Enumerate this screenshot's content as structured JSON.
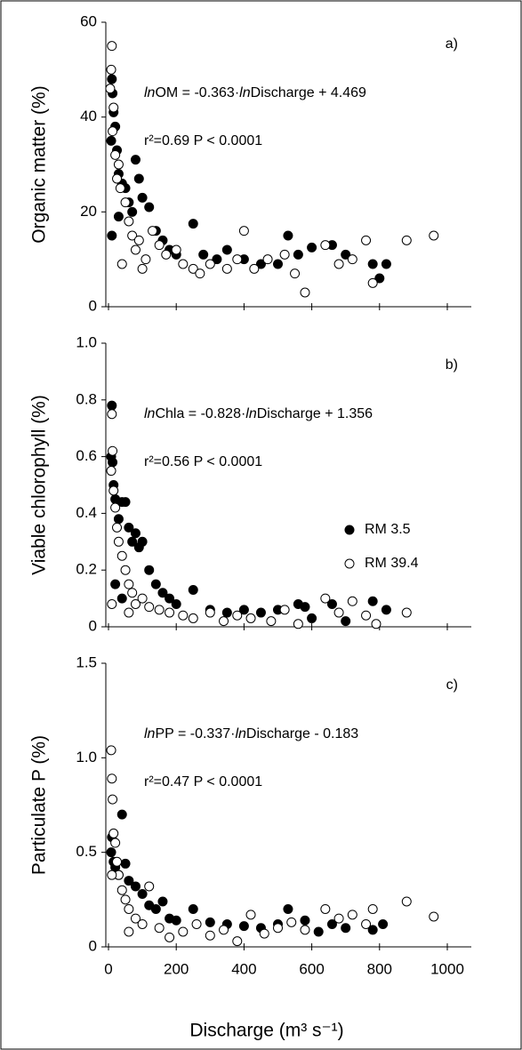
{
  "chart_data": [
    {
      "type": "scatter",
      "panel_label": "a)",
      "ylabel": "Organic matter (%)",
      "equation": "lnOM = -0.363·lnDischarge + 4.469",
      "stats": "r²=0.69 P < 0.0001",
      "xlim": [
        0,
        1000
      ],
      "xticks": [
        0,
        200,
        400,
        600,
        800,
        1000
      ],
      "ylim": [
        0,
        60
      ],
      "yticks": [
        0,
        20,
        40,
        60
      ],
      "series": [
        {
          "color": "#000000",
          "x": [
            10,
            12,
            15,
            8,
            20,
            25,
            30,
            40,
            50,
            60,
            70,
            80,
            90,
            100,
            120,
            140,
            160,
            180,
            200,
            250,
            280,
            320,
            350,
            400,
            450,
            500,
            530,
            560,
            600,
            660,
            700,
            780,
            800,
            820,
            10,
            30
          ],
          "values": [
            48,
            45,
            41,
            35,
            38,
            33,
            28,
            26,
            25,
            22,
            20,
            31,
            27,
            23,
            21,
            16,
            14,
            12,
            11,
            17.5,
            11,
            10,
            12,
            10,
            9,
            9,
            15,
            11,
            12.5,
            13,
            11,
            9,
            6,
            9,
            15,
            19
          ]
        },
        {
          "color": "#ffffff",
          "x": [
            10,
            8,
            5,
            15,
            12,
            20,
            25,
            30,
            35,
            50,
            60,
            70,
            80,
            90,
            110,
            130,
            150,
            170,
            200,
            220,
            250,
            270,
            300,
            350,
            380,
            400,
            430,
            470,
            520,
            550,
            580,
            640,
            680,
            720,
            760,
            780,
            880,
            960,
            40,
            100
          ],
          "values": [
            55,
            50,
            46,
            42,
            37,
            32,
            27,
            30,
            25,
            22,
            18,
            15,
            12,
            14,
            10,
            16,
            13,
            11,
            12,
            9,
            8,
            7,
            9,
            8,
            10,
            16,
            8,
            10,
            11,
            7,
            3,
            13,
            9,
            10,
            14,
            5,
            14,
            15,
            9,
            8
          ]
        }
      ]
    },
    {
      "type": "scatter",
      "panel_label": "b)",
      "ylabel": "Viable chlorophyll (%)",
      "equation": "lnChla = -0.828·lnDischarge + 1.356",
      "stats": "r²=0.56 P < 0.0001",
      "xlim": [
        0,
        1000
      ],
      "xticks": [
        0,
        200,
        400,
        600,
        800,
        1000
      ],
      "ylim": [
        0,
        1
      ],
      "yticks": [
        0,
        0.2,
        0.4,
        0.6,
        0.8,
        {
          "value": 1,
          "label": "1.0"
        }
      ],
      "legend": "right",
      "series": [
        {
          "name": "RM 3.5",
          "color": "#000000",
          "x": [
            10,
            8,
            12,
            15,
            20,
            30,
            40,
            50,
            60,
            70,
            80,
            90,
            100,
            120,
            140,
            160,
            180,
            200,
            250,
            300,
            350,
            400,
            450,
            500,
            560,
            580,
            600,
            660,
            700,
            780,
            820,
            20,
            40
          ],
          "values": [
            0.78,
            0.6,
            0.58,
            0.5,
            0.45,
            0.38,
            0.44,
            0.44,
            0.35,
            0.3,
            0.33,
            0.28,
            0.3,
            0.2,
            0.15,
            0.12,
            0.1,
            0.08,
            0.13,
            0.06,
            0.05,
            0.06,
            0.05,
            0.06,
            0.08,
            0.07,
            0.03,
            0.08,
            0.02,
            0.09,
            0.06,
            0.15,
            0.1
          ]
        },
        {
          "name": "RM 39.4",
          "color": "#ffffff",
          "x": [
            10,
            12,
            8,
            15,
            20,
            25,
            30,
            40,
            50,
            60,
            70,
            80,
            100,
            120,
            150,
            180,
            220,
            250,
            300,
            340,
            380,
            420,
            480,
            520,
            560,
            640,
            680,
            720,
            760,
            790,
            880,
            10,
            60
          ],
          "values": [
            0.75,
            0.62,
            0.55,
            0.48,
            0.42,
            0.35,
            0.3,
            0.25,
            0.2,
            0.15,
            0.12,
            0.08,
            0.1,
            0.07,
            0.06,
            0.05,
            0.04,
            0.03,
            0.05,
            0.02,
            0.04,
            0.03,
            0.02,
            0.06,
            0.01,
            0.1,
            0.05,
            0.09,
            0.04,
            0.01,
            0.05,
            0.08,
            0.05
          ]
        }
      ]
    },
    {
      "type": "scatter",
      "panel_label": "c)",
      "ylabel": "Particulate P (%)",
      "equation": "lnPP = -0.337·lnDischarge - 0.183",
      "stats": "r²=0.47 P < 0.0001",
      "xlabel": "Discharge (m³ s⁻¹)",
      "show_xtick_labels": true,
      "xlim": [
        0,
        1000
      ],
      "xticks": [
        0,
        200,
        400,
        600,
        800,
        1000
      ],
      "ylim": [
        0,
        1.5
      ],
      "yticks": [
        0,
        0.5,
        {
          "value": 1,
          "label": "1.0"
        },
        1.5
      ],
      "series": [
        {
          "color": "#000000",
          "x": [
            10,
            8,
            15,
            20,
            40,
            30,
            50,
            60,
            80,
            100,
            120,
            140,
            160,
            180,
            200,
            250,
            300,
            350,
            400,
            450,
            500,
            530,
            580,
            620,
            660,
            700,
            780,
            810
          ],
          "values": [
            0.58,
            0.5,
            0.45,
            0.42,
            0.7,
            0.38,
            0.44,
            0.35,
            0.32,
            0.28,
            0.22,
            0.2,
            0.24,
            0.15,
            0.14,
            0.2,
            0.13,
            0.12,
            0.11,
            0.1,
            0.12,
            0.2,
            0.14,
            0.08,
            0.12,
            0.1,
            0.09,
            0.12
          ]
        },
        {
          "color": "#ffffff",
          "x": [
            8,
            10,
            12,
            15,
            20,
            25,
            30,
            40,
            50,
            60,
            80,
            100,
            120,
            150,
            180,
            220,
            260,
            300,
            340,
            380,
            420,
            460,
            500,
            540,
            580,
            640,
            680,
            720,
            760,
            780,
            880,
            960,
            10,
            60
          ],
          "values": [
            1.04,
            0.89,
            0.78,
            0.6,
            0.55,
            0.45,
            0.38,
            0.3,
            0.25,
            0.2,
            0.15,
            0.12,
            0.32,
            0.1,
            0.05,
            0.08,
            0.12,
            0.06,
            0.09,
            0.03,
            0.17,
            0.07,
            0.1,
            0.13,
            0.09,
            0.2,
            0.15,
            0.17,
            0.12,
            0.2,
            0.24,
            0.16,
            0.38,
            0.08
          ]
        }
      ]
    }
  ]
}
